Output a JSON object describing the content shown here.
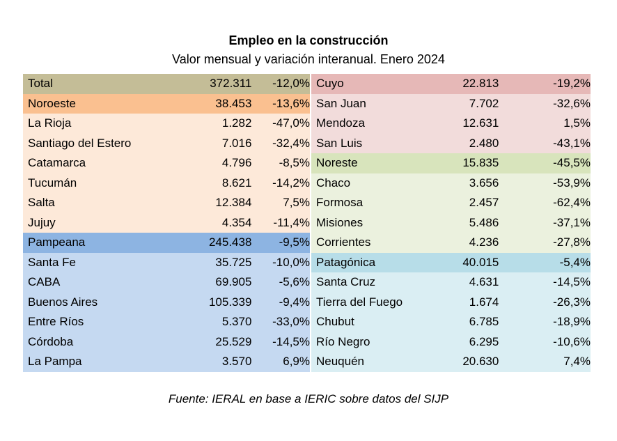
{
  "title": "Empleo en la construcción",
  "subtitle": "Valor mensual y variación interanual. Enero 2024",
  "source": "Fuente: IERAL en base a IERIC sobre datos del SIJP",
  "colors": {
    "total_header": "#c4bd97",
    "noroeste_header": "#fac090",
    "noroeste_body": "#fde9d9",
    "pampeana_header": "#8db4e2",
    "pampeana_body": "#c5d9f1",
    "cuyo_header": "#e6b8b7",
    "cuyo_body": "#f2dcdb",
    "noreste_header": "#d8e4bc",
    "noreste_body": "#ebf1de",
    "patagonica_header": "#b7dde8",
    "patagonica_body": "#daeef3"
  },
  "left_rows": [
    {
      "name": "Total",
      "value": "372.311",
      "pct": "-12,0%",
      "color": "total_header"
    },
    {
      "name": "Noroeste",
      "value": "38.453",
      "pct": "-13,6%",
      "color": "noroeste_header"
    },
    {
      "name": "La Rioja",
      "value": "1.282",
      "pct": "-47,0%",
      "color": "noroeste_body"
    },
    {
      "name": "Santiago del Estero",
      "value": "7.016",
      "pct": "-32,4%",
      "color": "noroeste_body"
    },
    {
      "name": "Catamarca",
      "value": "4.796",
      "pct": "-8,5%",
      "color": "noroeste_body"
    },
    {
      "name": "Tucumán",
      "value": "8.621",
      "pct": "-14,2%",
      "color": "noroeste_body"
    },
    {
      "name": "Salta",
      "value": "12.384",
      "pct": "7,5%",
      "color": "noroeste_body"
    },
    {
      "name": "Jujuy",
      "value": "4.354",
      "pct": "-11,4%",
      "color": "noroeste_body"
    },
    {
      "name": "Pampeana",
      "value": "245.438",
      "pct": "-9,5%",
      "color": "pampeana_header"
    },
    {
      "name": "Santa Fe",
      "value": "35.725",
      "pct": "-10,0%",
      "color": "pampeana_body"
    },
    {
      "name": "CABA",
      "value": "69.905",
      "pct": "-5,6%",
      "color": "pampeana_body"
    },
    {
      "name": "Buenos Aires",
      "value": "105.339",
      "pct": "-9,4%",
      "color": "pampeana_body"
    },
    {
      "name": "Entre Ríos",
      "value": "5.370",
      "pct": "-33,0%",
      "color": "pampeana_body"
    },
    {
      "name": "Córdoba",
      "value": "25.529",
      "pct": "-14,5%",
      "color": "pampeana_body"
    },
    {
      "name": "La Pampa",
      "value": "3.570",
      "pct": "6,9%",
      "color": "pampeana_body"
    }
  ],
  "right_rows": [
    {
      "name": "Cuyo",
      "value": "22.813",
      "pct": "-19,2%",
      "color": "cuyo_header"
    },
    {
      "name": "San Juan",
      "value": "7.702",
      "pct": "-32,6%",
      "color": "cuyo_body"
    },
    {
      "name": "Mendoza",
      "value": "12.631",
      "pct": "1,5%",
      "color": "cuyo_body"
    },
    {
      "name": "San Luis",
      "value": "2.480",
      "pct": "-43,1%",
      "color": "cuyo_body"
    },
    {
      "name": "Noreste",
      "value": "15.835",
      "pct": "-45,5%",
      "color": "noreste_header"
    },
    {
      "name": "Chaco",
      "value": "3.656",
      "pct": "-53,9%",
      "color": "noreste_body"
    },
    {
      "name": "Formosa",
      "value": "2.457",
      "pct": "-62,4%",
      "color": "noreste_body"
    },
    {
      "name": "Misiones",
      "value": "5.486",
      "pct": "-37,1%",
      "color": "noreste_body"
    },
    {
      "name": "Corrientes",
      "value": "4.236",
      "pct": "-27,8%",
      "color": "noreste_body"
    },
    {
      "name": "Patagónica",
      "value": "40.015",
      "pct": "-5,4%",
      "color": "patagonica_header"
    },
    {
      "name": "Santa Cruz",
      "value": "4.631",
      "pct": "-14,5%",
      "color": "patagonica_body"
    },
    {
      "name": "Tierra del Fuego",
      "value": "1.674",
      "pct": "-26,3%",
      "color": "patagonica_body"
    },
    {
      "name": "Chubut",
      "value": "6.785",
      "pct": "-18,9%",
      "color": "patagonica_body"
    },
    {
      "name": "Río Negro",
      "value": "6.295",
      "pct": "-10,6%",
      "color": "patagonica_body"
    },
    {
      "name": "Neuquén",
      "value": "20.630",
      "pct": "7,4%",
      "color": "patagonica_body"
    }
  ]
}
